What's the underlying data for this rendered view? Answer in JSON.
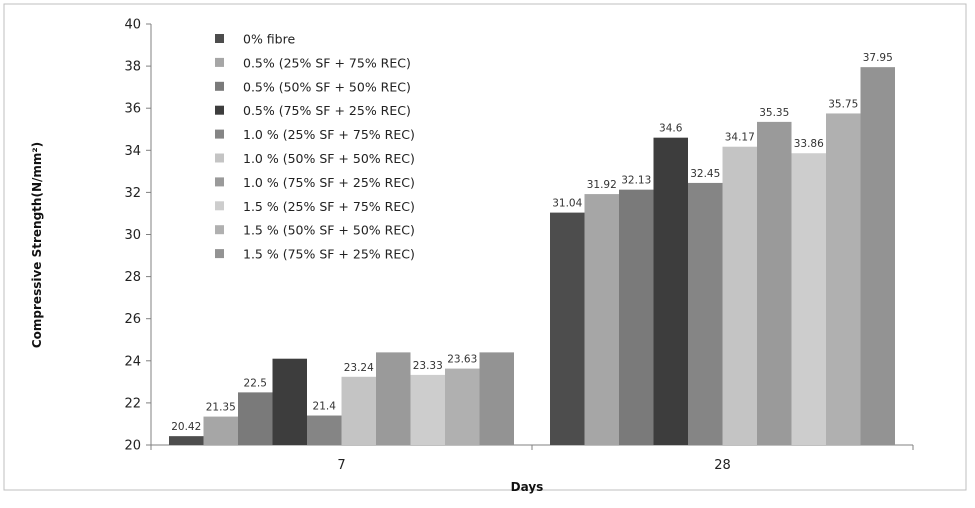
{
  "chart_data": {
    "type": "bar",
    "ylabel": "Compressive Strength(N/mm²)",
    "xlabel": "Days",
    "ylim": [
      20,
      40
    ],
    "yticks": [
      20,
      22,
      24,
      26,
      28,
      30,
      32,
      34,
      36,
      38,
      40
    ],
    "categories": [
      "7",
      "28"
    ],
    "legend_position": "top-left",
    "grid": false,
    "series": [
      {
        "name": "0% fibre",
        "values": [
          20.42,
          31.04
        ],
        "labels": [
          "20.42",
          "31.04"
        ],
        "color": "#4d4d4d"
      },
      {
        "name": "0.5% (25% SF + 75% REC)",
        "values": [
          21.35,
          31.92
        ],
        "labels": [
          "21.35",
          "31.92"
        ],
        "color": "#a6a6a6"
      },
      {
        "name": "0.5% (50% SF + 50% REC)",
        "values": [
          22.5,
          32.13
        ],
        "labels": [
          "22.5",
          "32.13"
        ],
        "color": "#7a7a7a"
      },
      {
        "name": "0.5% (75% SF + 25% REC)",
        "values": [
          24.1,
          34.6
        ],
        "labels": [
          "",
          "34.6"
        ],
        "color": "#3d3d3d"
      },
      {
        "name": "1.0 % (25% SF + 75% REC)",
        "values": [
          21.4,
          32.45
        ],
        "labels": [
          "21.4",
          "32.45"
        ],
        "color": "#858585"
      },
      {
        "name": "1.0 % (50% SF + 50% REC)",
        "values": [
          23.24,
          34.17
        ],
        "labels": [
          "23.24",
          "34.17"
        ],
        "color": "#c4c4c4"
      },
      {
        "name": "1.0 % (75% SF + 25% REC)",
        "values": [
          24.4,
          35.35
        ],
        "labels": [
          "",
          "35.35"
        ],
        "color": "#9a9a9a"
      },
      {
        "name": "1.5 % (25% SF + 75% REC)",
        "values": [
          23.33,
          33.86
        ],
        "labels": [
          "23.33",
          "33.86"
        ],
        "color": "#cdcdcd"
      },
      {
        "name": "1.5 % (50% SF + 50% REC)",
        "values": [
          23.63,
          35.75
        ],
        "labels": [
          "23.63",
          "35.75"
        ],
        "color": "#b0b0b0"
      },
      {
        "name": "1.5 % (75% SF + 25% REC)",
        "values": [
          24.4,
          37.95
        ],
        "labels": [
          "",
          "37.95"
        ],
        "color": "#939393"
      }
    ]
  }
}
